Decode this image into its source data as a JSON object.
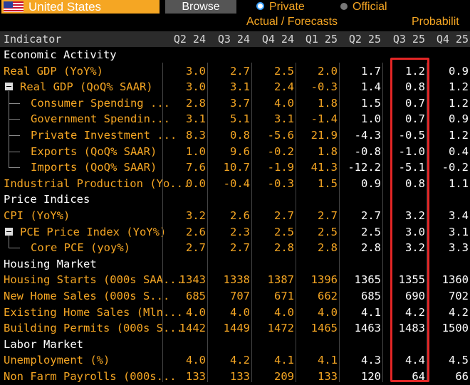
{
  "topbar": {
    "country": "United States",
    "browse_label": "Browse",
    "private_label": "Private",
    "official_label": "Official"
  },
  "subheaders": {
    "actual_forecasts": "Actual / Forecasts",
    "probability": "Probabilit"
  },
  "table": {
    "indicator_header": "Indicator",
    "columns": [
      "Q2 24",
      "Q3 24",
      "Q4 24",
      "Q1 25",
      "Q2 25",
      "Q3 25",
      "Q4 25"
    ],
    "rows": [
      {
        "label": "Economic Activity",
        "type": "section"
      },
      {
        "label": "Real GDP (YoY%)",
        "type": "item",
        "level": 0,
        "values": [
          "3.0",
          "2.7",
          "2.5",
          "2.0",
          "1.7",
          "1.2",
          "0.9"
        ]
      },
      {
        "label": "Real GDP (QoQ% SAAR)",
        "type": "item",
        "level": 0,
        "collapsible": true,
        "values": [
          "3.0",
          "3.1",
          "2.4",
          "-0.3",
          "1.4",
          "0.8",
          "1.2"
        ]
      },
      {
        "label": "Consumer Spending ...",
        "type": "item",
        "level": 1,
        "values": [
          "2.8",
          "3.7",
          "4.0",
          "1.8",
          "1.5",
          "0.7",
          "1.2"
        ]
      },
      {
        "label": "Government Spendin...",
        "type": "item",
        "level": 1,
        "values": [
          "3.1",
          "5.1",
          "3.1",
          "-1.4",
          "1.0",
          "0.7",
          "0.9"
        ]
      },
      {
        "label": "Private Investment ...",
        "type": "item",
        "level": 1,
        "values": [
          "8.3",
          "0.8",
          "-5.6",
          "21.9",
          "-4.3",
          "-0.5",
          "1.2"
        ]
      },
      {
        "label": "Exports (QoQ% SAAR)",
        "type": "item",
        "level": 1,
        "values": [
          "1.0",
          "9.6",
          "-0.2",
          "1.8",
          "-0.8",
          "-1.0",
          "0.4"
        ]
      },
      {
        "label": "Imports (QoQ% SAAR)",
        "type": "item",
        "level": 1,
        "last": true,
        "values": [
          "7.6",
          "10.7",
          "-1.9",
          "41.3",
          "-12.2",
          "-5.1",
          "-0.2"
        ]
      },
      {
        "label": "Industrial Production (Yo...",
        "type": "item",
        "level": 0,
        "values": [
          "0.0",
          "-0.4",
          "-0.3",
          "1.5",
          "0.9",
          "0.8",
          "1.1"
        ]
      },
      {
        "label": "Price Indices",
        "type": "section"
      },
      {
        "label": "CPI (YoY%)",
        "type": "item",
        "level": 0,
        "values": [
          "3.2",
          "2.6",
          "2.7",
          "2.7",
          "2.7",
          "3.2",
          "3.4"
        ]
      },
      {
        "label": "PCE Price Index (YoY%)",
        "type": "item",
        "level": 0,
        "collapsible": true,
        "values": [
          "2.6",
          "2.3",
          "2.5",
          "2.5",
          "2.5",
          "3.0",
          "3.1"
        ]
      },
      {
        "label": "Core PCE (yoy%)",
        "type": "item",
        "level": 1,
        "last": true,
        "values": [
          "2.7",
          "2.7",
          "2.8",
          "2.8",
          "2.8",
          "3.2",
          "3.3"
        ]
      },
      {
        "label": "Housing Market",
        "type": "section"
      },
      {
        "label": "Housing Starts (000s SAA...",
        "type": "item",
        "level": 0,
        "values": [
          "1343",
          "1338",
          "1387",
          "1396",
          "1365",
          "1355",
          "1360"
        ]
      },
      {
        "label": "New Home Sales (000s S...",
        "type": "item",
        "level": 0,
        "values": [
          "685",
          "707",
          "671",
          "662",
          "685",
          "690",
          "702"
        ]
      },
      {
        "label": "Existing Home Sales (Mln...",
        "type": "item",
        "level": 0,
        "values": [
          "4.0",
          "4.0",
          "4.0",
          "4.0",
          "4.1",
          "4.2",
          "4.2"
        ]
      },
      {
        "label": "Building Permits (000s S...",
        "type": "item",
        "level": 0,
        "values": [
          "1442",
          "1449",
          "1472",
          "1465",
          "1463",
          "1483",
          "1500"
        ]
      },
      {
        "label": "Labor Market",
        "type": "section"
      },
      {
        "label": "Unemployment (%)",
        "type": "item",
        "level": 0,
        "values": [
          "4.0",
          "4.2",
          "4.1",
          "4.1",
          "4.3",
          "4.4",
          "4.5"
        ]
      },
      {
        "label": "Non Farm Payrolls (000s...",
        "type": "item",
        "level": 0,
        "values": [
          "133",
          "133",
          "209",
          "133",
          "120",
          "64",
          "66"
        ]
      }
    ]
  },
  "colors": {
    "accent": "#f5a623",
    "highlight": "#e32626",
    "header_bg": "#2b2b2b"
  }
}
